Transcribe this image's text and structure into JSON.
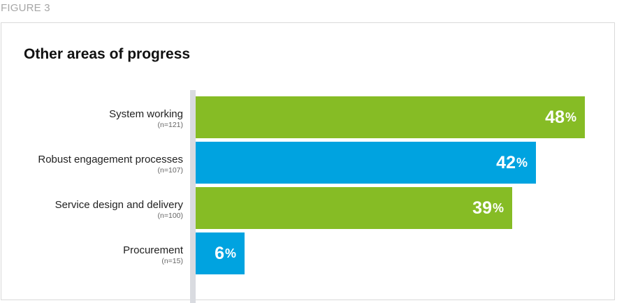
{
  "figure_label": "FIGURE 3",
  "chart_data": {
    "type": "bar",
    "orientation": "horizontal",
    "title": "Other areas of progress",
    "categories": [
      "System working",
      "Robust engagement processes",
      "Service design and delivery",
      "Procurement"
    ],
    "sample_sizes": [
      "(n=121)",
      "(n=107)",
      "(n=100)",
      "(n=15)"
    ],
    "values": [
      48,
      42,
      39,
      6
    ],
    "value_unit": "%",
    "bar_colors": [
      "#86bc25",
      "#00a3e0",
      "#86bc25",
      "#00a3e0"
    ],
    "xlim": [
      0,
      48
    ],
    "grid": false,
    "legend": "none"
  }
}
